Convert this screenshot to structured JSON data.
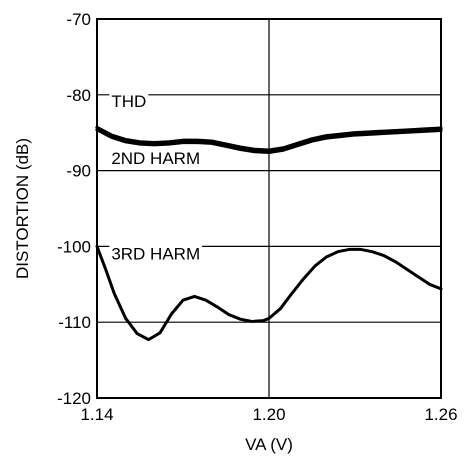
{
  "chart_data": {
    "type": "line",
    "title": "",
    "xlabel": "VA (V)",
    "ylabel": "DISTORTION (dB)",
    "xlim": [
      1.14,
      1.26
    ],
    "ylim": [
      -120,
      -70
    ],
    "x_ticks": [
      1.14,
      1.2,
      1.26
    ],
    "x_tick_labels": [
      "1.14",
      "1.20",
      "1.26"
    ],
    "y_ticks": [
      -120,
      -110,
      -100,
      -90,
      -80,
      -70
    ],
    "y_tick_labels": [
      "-120",
      "-110",
      "-100",
      "-90",
      "-80",
      "-70"
    ],
    "grid": true,
    "legend": "none",
    "series": [
      {
        "name": "THD",
        "color": "#000000",
        "x": [
          1.14,
          1.145,
          1.15,
          1.155,
          1.16,
          1.165,
          1.17,
          1.175,
          1.18,
          1.185,
          1.19,
          1.195,
          1.2,
          1.205,
          1.21,
          1.215,
          1.22,
          1.225,
          1.23,
          1.235,
          1.24,
          1.245,
          1.25,
          1.255,
          1.26
        ],
        "values": [
          -84.3,
          -85.3,
          -85.9,
          -86.2,
          -86.3,
          -86.2,
          -86.0,
          -86.0,
          -86.1,
          -86.5,
          -86.9,
          -87.2,
          -87.3,
          -87.0,
          -86.4,
          -85.8,
          -85.4,
          -85.2,
          -85.0,
          -84.9,
          -84.8,
          -84.7,
          -84.6,
          -84.5,
          -84.4
        ]
      },
      {
        "name": "2ND HARM",
        "color": "#000000",
        "x": [
          1.14,
          1.145,
          1.15,
          1.155,
          1.16,
          1.165,
          1.17,
          1.175,
          1.18,
          1.185,
          1.19,
          1.195,
          1.2,
          1.205,
          1.21,
          1.215,
          1.22,
          1.225,
          1.23,
          1.235,
          1.24,
          1.245,
          1.25,
          1.255,
          1.26
        ],
        "values": [
          -84.6,
          -85.6,
          -86.2,
          -86.5,
          -86.6,
          -86.5,
          -86.3,
          -86.3,
          -86.4,
          -86.8,
          -87.2,
          -87.5,
          -87.6,
          -87.3,
          -86.7,
          -86.1,
          -85.7,
          -85.5,
          -85.3,
          -85.2,
          -85.1,
          -85.0,
          -84.9,
          -84.8,
          -84.7
        ]
      },
      {
        "name": "3RD HARM",
        "color": "#000000",
        "x": [
          1.14,
          1.143,
          1.146,
          1.15,
          1.154,
          1.158,
          1.162,
          1.166,
          1.17,
          1.174,
          1.178,
          1.182,
          1.186,
          1.19,
          1.194,
          1.198,
          1.2,
          1.204,
          1.208,
          1.212,
          1.216,
          1.22,
          1.224,
          1.228,
          1.232,
          1.236,
          1.24,
          1.244,
          1.248,
          1.252,
          1.256,
          1.26
        ],
        "values": [
          -100.0,
          -103.0,
          -106.2,
          -109.5,
          -111.5,
          -112.3,
          -111.4,
          -108.9,
          -107.1,
          -106.6,
          -107.1,
          -108.0,
          -109.0,
          -109.6,
          -109.9,
          -109.8,
          -109.5,
          -108.2,
          -106.2,
          -104.3,
          -102.6,
          -101.4,
          -100.7,
          -100.4,
          -100.4,
          -100.7,
          -101.2,
          -102.0,
          -103.0,
          -104.0,
          -105.0,
          -105.6
        ]
      }
    ],
    "series_labels": [
      {
        "text": "THD",
        "x": 1.145,
        "y": -81.6
      },
      {
        "text": "2ND HARM",
        "x": 1.145,
        "y": -89.1
      },
      {
        "text": "3RD HARM",
        "x": 1.145,
        "y": -101.7
      }
    ]
  }
}
